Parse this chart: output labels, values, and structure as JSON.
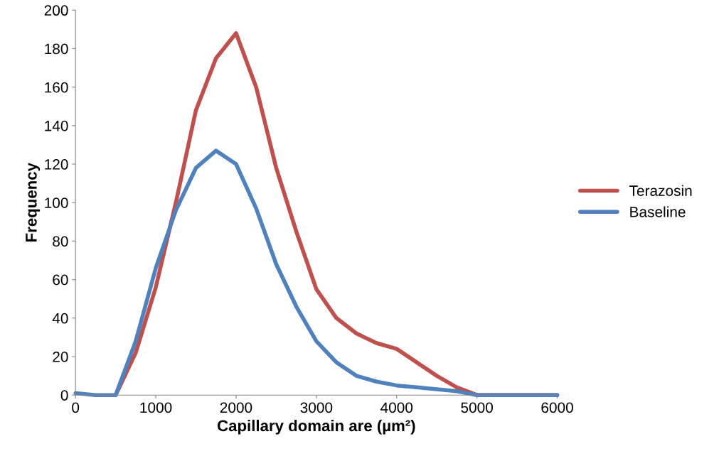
{
  "chart_data": {
    "type": "line",
    "xlabel": "Capillary domain are (µm²)",
    "ylabel": "Frequency",
    "x": [
      0,
      250,
      500,
      750,
      1000,
      1250,
      1500,
      1750,
      2000,
      2250,
      2500,
      2750,
      3000,
      3250,
      3500,
      3750,
      4000,
      4250,
      4500,
      4750,
      5000,
      5500,
      6000
    ],
    "series": [
      {
        "name": "Terazosin",
        "color": "#c0504d",
        "values": [
          null,
          null,
          0,
          22,
          56,
          100,
          148,
          175,
          188,
          160,
          118,
          85,
          55,
          40,
          32,
          27,
          24,
          17,
          10,
          4,
          0,
          0,
          0
        ]
      },
      {
        "name": "Baseline",
        "color": "#4f81bd",
        "values": [
          1,
          0,
          0,
          28,
          66,
          96,
          118,
          127,
          120,
          97,
          68,
          46,
          28,
          17,
          10,
          7,
          5,
          4,
          3,
          2,
          0,
          0,
          0
        ]
      }
    ],
    "xlim": [
      0,
      6000
    ],
    "xticks": [
      0,
      1000,
      2000,
      3000,
      4000,
      5000,
      6000
    ],
    "ylim": [
      0,
      200
    ],
    "yticks": [
      0,
      20,
      40,
      60,
      80,
      100,
      120,
      140,
      160,
      180,
      200
    ],
    "grid": false,
    "legend": "right",
    "marker": "none",
    "line_style": "solid"
  }
}
